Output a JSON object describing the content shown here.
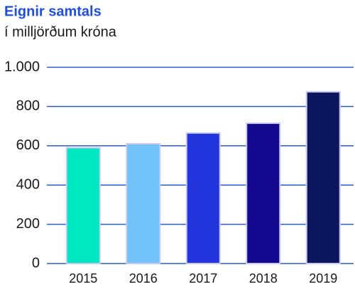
{
  "chart_data": {
    "type": "bar",
    "title": "Eignir samtals",
    "subtitle": "í milljörðum króna",
    "categories": [
      "2015",
      "2016",
      "2017",
      "2018",
      "2019"
    ],
    "values": [
      590,
      610,
      665,
      715,
      875
    ],
    "colors": [
      "#00e8c2",
      "#70c2f8",
      "#2234dc",
      "#14098e",
      "#0b165e"
    ],
    "ylim": [
      0,
      1000
    ],
    "yticks": [
      0,
      200,
      400,
      600,
      800,
      {
        "value": 1000,
        "label": "1.000"
      }
    ],
    "grid": true
  }
}
